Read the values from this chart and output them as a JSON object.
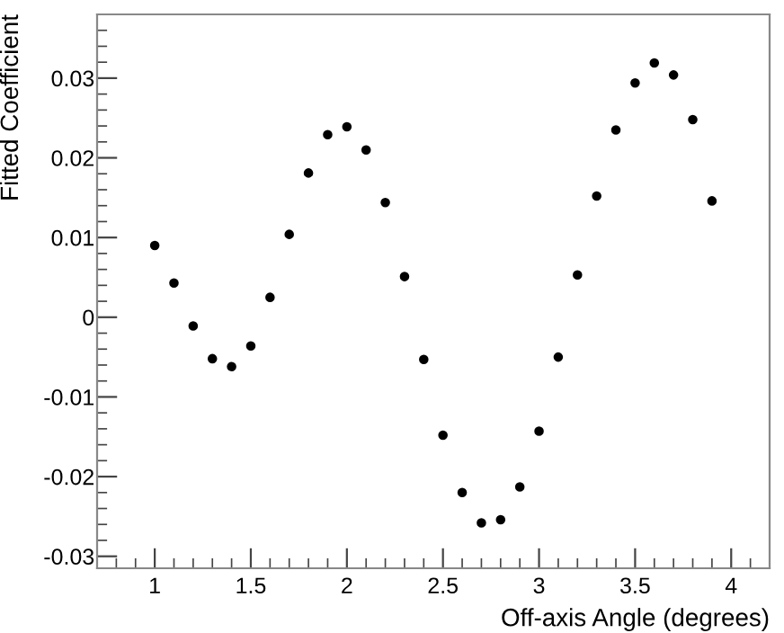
{
  "chart_data": {
    "type": "scatter",
    "xlabel": "Off-axis Angle (degrees)",
    "ylabel": "Fitted Coefficient",
    "x": [
      1.0,
      1.1,
      1.2,
      1.3,
      1.4,
      1.5,
      1.6,
      1.7,
      1.8,
      1.9,
      2.0,
      2.1,
      2.2,
      2.3,
      2.4,
      2.5,
      2.6,
      2.7,
      2.8,
      2.9,
      3.0,
      3.1,
      3.2,
      3.3,
      3.4,
      3.5,
      3.6,
      3.7,
      3.8,
      3.9
    ],
    "series": [
      {
        "color": "#000000",
        "values": [
          0.009,
          0.0043,
          -0.0011,
          -0.0052,
          -0.0062,
          -0.0036,
          0.0025,
          0.0104,
          0.0181,
          0.0229,
          0.0239,
          0.021,
          0.0144,
          0.0051,
          -0.0053,
          -0.0148,
          -0.022,
          -0.0258,
          -0.0254,
          -0.0213,
          -0.0143,
          -0.005,
          0.0053,
          0.0152,
          0.0235,
          0.0294,
          0.0319,
          0.0304,
          0.0248,
          0.0146
        ]
      }
    ],
    "xlim": [
      0.7,
      4.2
    ],
    "ylim": [
      -0.0315,
      0.038
    ],
    "xticks": [
      1,
      1.5,
      2,
      2.5,
      3,
      3.5,
      4
    ],
    "yticks": [
      -0.03,
      -0.02,
      -0.01,
      0,
      0.01,
      0.02,
      0.03
    ],
    "marker": "circle",
    "grid": false,
    "legend": false
  }
}
